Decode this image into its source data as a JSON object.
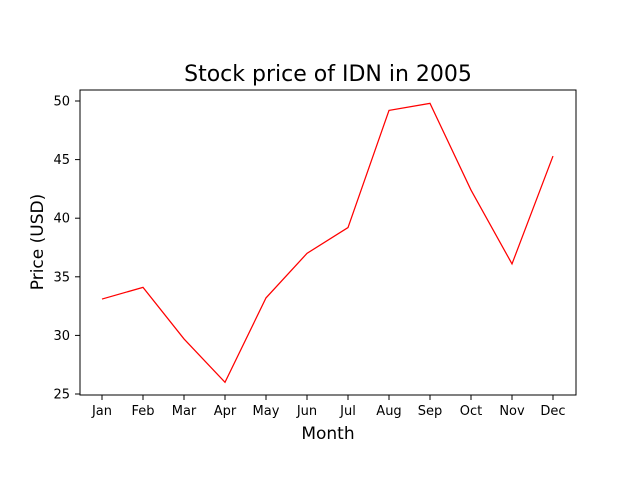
{
  "chart_data": {
    "type": "line",
    "title": "Stock price of IDN in 2005",
    "xlabel": "Month",
    "ylabel": "Price (USD)",
    "categories": [
      "Jan",
      "Feb",
      "Mar",
      "Apr",
      "May",
      "Jun",
      "Jul",
      "Aug",
      "Sep",
      "Oct",
      "Nov",
      "Dec"
    ],
    "series": [
      {
        "values": [
          33.1,
          34.1,
          29.7,
          26.0,
          33.2,
          37.0,
          39.2,
          49.2,
          49.8,
          42.4,
          36.1,
          45.3
        ],
        "color": "#ff0000"
      }
    ],
    "ylim": [
      25,
      50
    ],
    "yticks": [
      25,
      30,
      35,
      40,
      45,
      50
    ],
    "grid": false,
    "legend": "none"
  }
}
